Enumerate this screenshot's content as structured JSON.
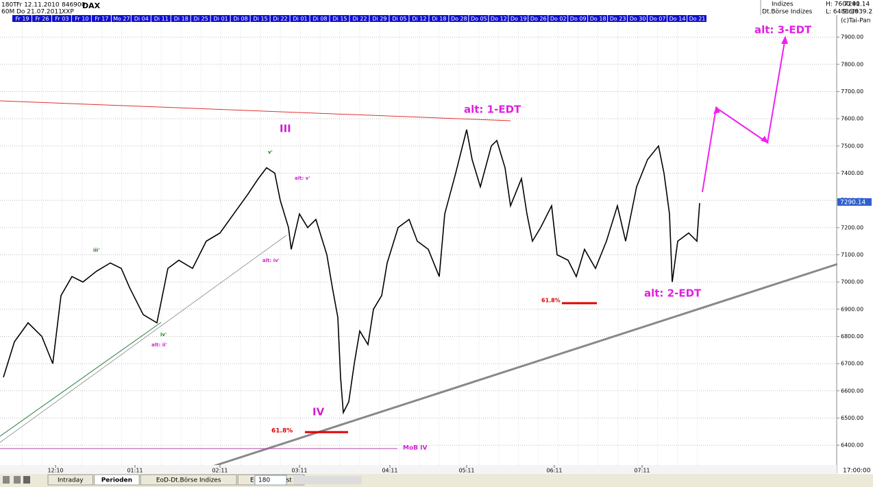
{
  "header": {
    "period": "180T",
    "start_date": "Fr 12.11.2010",
    "wkn": "846900",
    "symbol": "DAX",
    "interval": "60M",
    "end_date": "Do 21.07.2011",
    "exchange": "XXP",
    "group": "Indizes",
    "group_name": "Dt.Börse Indizes",
    "high": "H: 7600.41",
    "low": "L: 6483.39",
    "last": "7290.14",
    "change": "9.6/639.22",
    "copyright": "(c)Tai-Pan"
  },
  "date_bar": [
    "Fr 19",
    "Fr 26",
    "Fr 03",
    "Fr 10",
    "Fr 17",
    "Mo 27",
    "Di 04",
    "Di 11",
    "Di 18",
    "Di 25",
    "Di 01",
    "Di 08",
    "Di 15",
    "Di 22",
    "Di 01",
    "Di 08",
    "Di 15",
    "Di 22",
    "Di 29",
    "Di 05",
    "Di 12",
    "Di 18",
    "Do 28",
    "Do 05",
    "Do 12",
    "Do 19",
    "Do 26",
    "Do 02",
    "Do 09",
    "Do 18",
    "Do 23",
    "Do 30",
    "Do 07",
    "Do 14",
    "Do 21"
  ],
  "chart_data": {
    "type": "line",
    "color": "#000000",
    "x": [
      0,
      4,
      9,
      14,
      18,
      21,
      25,
      29,
      34,
      39,
      43,
      46,
      51,
      56,
      60,
      64,
      69,
      74,
      79,
      84,
      89,
      93,
      96,
      99,
      101,
      104,
      105,
      108,
      111,
      114,
      118,
      120,
      122,
      123,
      124,
      126,
      128,
      130,
      133,
      135,
      138,
      140,
      144,
      148,
      151,
      155,
      159,
      161,
      165,
      169,
      171,
      174,
      178,
      180,
      183,
      185,
      189,
      191,
      193,
      196,
      200,
      202,
      206,
      209,
      212,
      216,
      220,
      224,
      227,
      231,
      235,
      239,
      241,
      243,
      244,
      246,
      250,
      253,
      254
    ],
    "series": [
      {
        "name": "DAX",
        "values": [
          6650,
          6780,
          6850,
          6800,
          6700,
          6950,
          7020,
          7000,
          7040,
          7070,
          7050,
          6980,
          6880,
          6850,
          7050,
          7080,
          7050,
          7150,
          7180,
          7250,
          7320,
          7380,
          7420,
          7400,
          7300,
          7200,
          7120,
          7250,
          7200,
          7230,
          7100,
          6980,
          6870,
          6650,
          6520,
          6560,
          6700,
          6820,
          6770,
          6900,
          6950,
          7070,
          7200,
          7230,
          7150,
          7120,
          7020,
          7250,
          7400,
          7560,
          7450,
          7350,
          7500,
          7520,
          7420,
          7280,
          7380,
          7250,
          7150,
          7200,
          7280,
          7100,
          7080,
          7020,
          7120,
          7050,
          7150,
          7280,
          7150,
          7350,
          7450,
          7500,
          7400,
          7250,
          7000,
          7150,
          7180,
          7150,
          7290
        ]
      }
    ],
    "xlim": [
      0,
      304
    ],
    "ylim": [
      6302,
      7981
    ],
    "xticks": [
      {
        "value": 19,
        "label": "12:10"
      },
      {
        "value": 48,
        "label": "01:11"
      },
      {
        "value": 79,
        "label": "02:11"
      },
      {
        "value": 108,
        "label": "03:11"
      },
      {
        "value": 141,
        "label": "04:11"
      },
      {
        "value": 169,
        "label": "05:11"
      },
      {
        "value": 201,
        "label": "06:11"
      },
      {
        "value": 233,
        "label": "07:11"
      }
    ],
    "yticks": [
      {
        "value": 6400,
        "label": "6400.00"
      },
      {
        "value": 6500,
        "label": "6500.00"
      },
      {
        "value": 6600,
        "label": "6600.00"
      },
      {
        "value": 6700,
        "label": "6700.00"
      },
      {
        "value": 6800,
        "label": "6800.00"
      },
      {
        "value": 6900,
        "label": "6900.00"
      },
      {
        "value": 7000,
        "label": "7000.00"
      },
      {
        "value": 7100,
        "label": "7100.00"
      },
      {
        "value": 7200,
        "label": "7200.00"
      },
      {
        "value": 7300,
        "label": "7300.00"
      },
      {
        "value": 7400,
        "label": "7400.00"
      },
      {
        "value": 7500,
        "label": "7500.00"
      },
      {
        "value": 7600,
        "label": "7600.00"
      },
      {
        "value": 7700,
        "label": "7700.00"
      },
      {
        "value": 7800,
        "label": "7800.00"
      },
      {
        "value": 7900,
        "label": "7900.00"
      }
    ],
    "grid": true,
    "annotations": [
      "III",
      "v'",
      "alt: v'",
      "iii'",
      "iv'",
      "alt: ii'",
      "alt: iv'",
      "IV",
      "61.8%",
      "MoB IV",
      "alt: 1-EDT",
      "61.8%",
      "alt: 2-EDT",
      "alt: 3-EDT"
    ]
  },
  "toolbar": {
    "tabs": [
      "Intraday",
      "Perioden",
      "EoD-Dt.Börse Indizes",
      "EoD-Langfrist"
    ],
    "period_select": "180",
    "time": "17:00:00"
  }
}
